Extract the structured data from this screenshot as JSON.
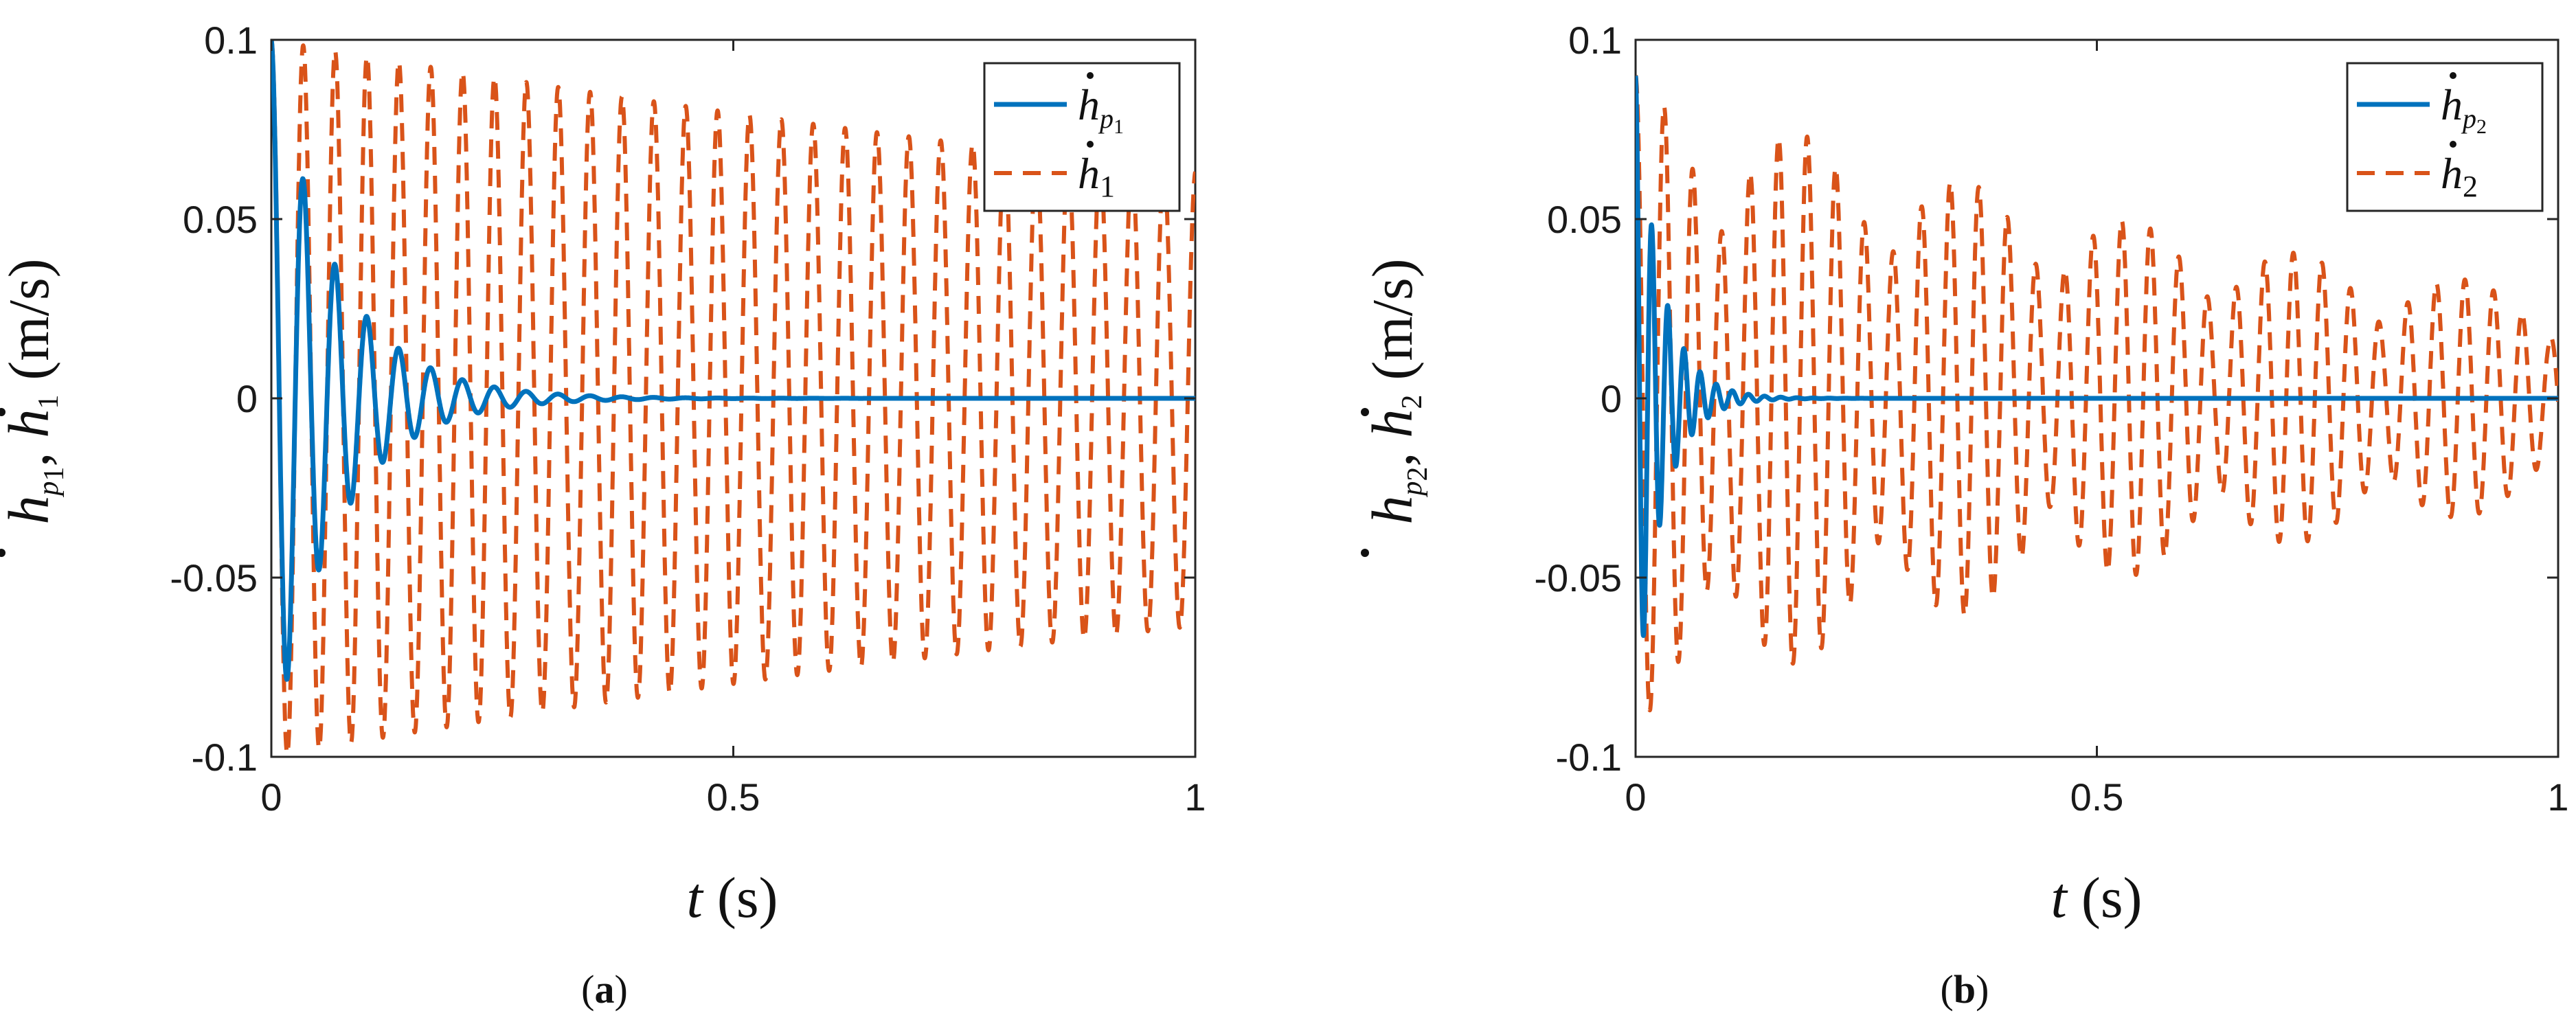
{
  "colors": {
    "series_solid": "#0072BD",
    "series_dashed": "#D95319",
    "axes": "#262626",
    "background": "#FFFFFF"
  },
  "chart_data": [
    {
      "id": "a",
      "type": "line",
      "caption_label": "a",
      "xlabel_var": "t",
      "xlabel_unit": "(s)",
      "ylabel_var_p": "h",
      "ylabel_sub_p": "p",
      "ylabel_subsub_p": "1",
      "ylabel_var": "h",
      "ylabel_sub": "1",
      "ylabel_unit": "(m/s)",
      "xlim": [
        0,
        1
      ],
      "ylim": [
        -0.1,
        0.1
      ],
      "xticks": [
        0,
        0.5,
        1
      ],
      "xtick_labels": [
        "0",
        "0.5",
        "1"
      ],
      "yticks": [
        -0.1,
        -0.05,
        0,
        0.05,
        0.1
      ],
      "ytick_labels": [
        "-0.1",
        "-0.05",
        "0",
        "0.05",
        "0.1"
      ],
      "legend_position": "top-right",
      "series": [
        {
          "name": "ḣp₁",
          "legend_var": "h",
          "legend_sub": "p",
          "legend_subsub": "1",
          "style": "solid",
          "color": "#0072BD",
          "model": {
            "amplitude": 0.1,
            "decay": 0.07,
            "period": 0.0345,
            "phase": 0,
            "t_end": 1.0
          }
        },
        {
          "name": "ḣ₁",
          "legend_var": "h",
          "legend_sub": "1",
          "style": "dashed",
          "color": "#D95319",
          "model": {
            "amplitude": 0.1,
            "decay": 2.2,
            "period": 0.0345,
            "phase": 0,
            "t_end": 1.0
          }
        }
      ]
    },
    {
      "id": "b",
      "type": "line",
      "caption_label": "b",
      "xlabel_var": "t",
      "xlabel_unit": "(s)",
      "ylabel_var_p": "h",
      "ylabel_sub_p": "p",
      "ylabel_subsub_p": "2",
      "ylabel_var": "h",
      "ylabel_sub": "2",
      "ylabel_unit": "(m/s)",
      "xlim": [
        0,
        1
      ],
      "ylim": [
        -0.1,
        0.1
      ],
      "xticks": [
        0,
        0.5,
        1
      ],
      "xtick_labels": [
        "0",
        "0.5",
        "1"
      ],
      "yticks": [
        -0.1,
        -0.05,
        0,
        0.05,
        0.1
      ],
      "ytick_labels": [
        "-0.1",
        "-0.05",
        "0",
        "0.05",
        "0.1"
      ],
      "legend_position": "top-right",
      "series": [
        {
          "name": "ḣp₂",
          "legend_var": "h",
          "legend_sub": "p",
          "legend_subsub": "2",
          "style": "solid",
          "color": "#0072BD",
          "model": {
            "amplitude": 0.09,
            "decay": 0.028,
            "period": 0.0175,
            "phase": 0,
            "t_end": 1.0
          }
        },
        {
          "name": "ḣ₂",
          "legend_var": "h",
          "legend_sub": "2",
          "style": "dashed",
          "color": "#D95319",
          "model": {
            "amplitude": 0.09,
            "decay": 0.9,
            "period": 0.031,
            "beat_period": 0.18,
            "beat_depth": 0.45,
            "phase": 0,
            "t_end": 1.0
          }
        }
      ]
    }
  ]
}
